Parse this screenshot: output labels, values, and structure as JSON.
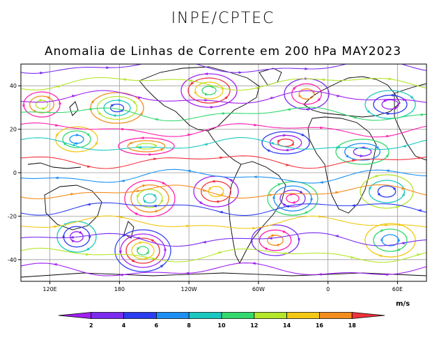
{
  "header": {
    "org": "INPE/CPTEC",
    "title": "Anomalia de Linhas de Corrente em 200 hPa MAY2023"
  },
  "axes": {
    "lat_ticks": [
      {
        "value": 40,
        "label": "40"
      },
      {
        "value": 20,
        "label": "20"
      },
      {
        "value": 0,
        "label": "0"
      },
      {
        "value": -20,
        "label": "-20"
      },
      {
        "value": -40,
        "label": "-40"
      }
    ],
    "lon_ticks": [
      {
        "value": 120,
        "label": "120E"
      },
      {
        "value": 180,
        "label": "180"
      },
      {
        "value": 240,
        "label": "120W"
      },
      {
        "value": 300,
        "label": "60W"
      },
      {
        "value": 360,
        "label": "0"
      },
      {
        "value": 420,
        "label": "60E"
      }
    ],
    "lon_range": [
      95,
      445
    ],
    "lat_range": [
      -50,
      50
    ]
  },
  "colorbar": {
    "units": "m/s",
    "labels": [
      "2",
      "4",
      "6",
      "8",
      "10",
      "12",
      "14",
      "16",
      "18"
    ],
    "colors": [
      "#a020f0",
      "#7b2cf0",
      "#2c3cf0",
      "#1e90f5",
      "#19c9c0",
      "#33d96e",
      "#b4e62a",
      "#f2c814",
      "#f58c1e",
      "#f0323c",
      "#ff20b0"
    ]
  }
}
